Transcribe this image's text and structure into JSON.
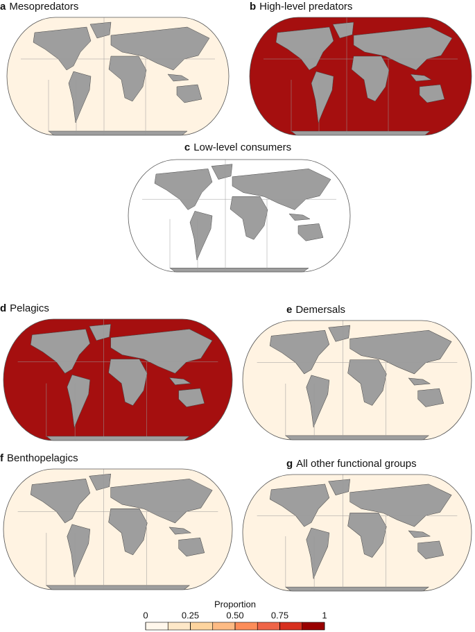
{
  "panels": [
    {
      "letter": "a",
      "title": "Mesopredators",
      "ocean_color": "#fff3e2"
    },
    {
      "letter": "b",
      "title": "High-level predators",
      "ocean_color": "#a50f0f"
    },
    {
      "letter": "c",
      "title": "Low-level consumers",
      "ocean_color": "#ffffff"
    },
    {
      "letter": "d",
      "title": "Pelagics",
      "ocean_color": "#a50f0f"
    },
    {
      "letter": "e",
      "title": "Demersals",
      "ocean_color": "#fff3e2"
    },
    {
      "letter": "f",
      "title": "Benthopelagics",
      "ocean_color": "#fff3e2"
    },
    {
      "letter": "g",
      "title": "All other functional groups",
      "ocean_color": "#fff3e2"
    }
  ],
  "legend": {
    "title": "Proportion",
    "lim": [
      0,
      1
    ],
    "ticks": [
      0,
      0.25,
      {
        "value": 0.5,
        "label": "0.50"
      },
      0.75,
      1
    ],
    "colors": [
      "#fff7ec",
      "#fee8c8",
      "#fdd49e",
      "#fdbb84",
      "#fc8d59",
      "#ef6548",
      "#d7301f",
      "#990000"
    ]
  }
}
